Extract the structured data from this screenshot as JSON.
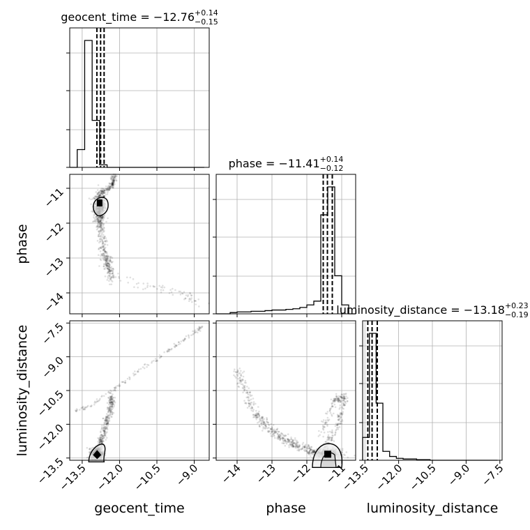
{
  "chart_data": {
    "type": "corner",
    "parameters": [
      "geocent_time",
      "phase",
      "luminosity_distance"
    ],
    "diagonal_titles": [
      {
        "param": "geocent_time",
        "name": "geocent_time = ",
        "median": "−12.76",
        "plus": "+0.14",
        "minus": "−0.15"
      },
      {
        "param": "phase",
        "name": "phase = ",
        "median": "−11.41",
        "plus": "+0.14",
        "minus": "−0.12"
      },
      {
        "param": "luminosity_distance",
        "name": "luminosity_distance = ",
        "median": "−13.18",
        "plus": "+0.23",
        "minus": "−0.19"
      }
    ],
    "axes": {
      "geocent_time": {
        "range": [
          -14.0,
          -8.4
        ],
        "ticks": [
          -13.5,
          -12.0,
          -10.5,
          -9.0
        ],
        "tick_labels": [
          "−13.5",
          "−12.0",
          "−10.5",
          "−9.0"
        ]
      },
      "phase": {
        "range": [
          -14.6,
          -10.6
        ],
        "ticks": [
          -14,
          -13,
          -12,
          -11
        ],
        "tick_labels": [
          "−14",
          "−13",
          "−12",
          "−11"
        ]
      },
      "luminosity_distance": {
        "range": [
          -13.6,
          -7.4
        ],
        "ticks": [
          -13.5,
          -12.0,
          -10.5,
          -9.0,
          -7.5
        ],
        "tick_labels": [
          "−13.5",
          "−12.0",
          "−10.5",
          "−9.0",
          "−7.5"
        ]
      }
    },
    "xlabels": [
      "geocent_time",
      "phase",
      "luminosity_distance"
    ],
    "ylabels": [
      "",
      "phase",
      "luminosity_distance"
    ],
    "histograms": {
      "geocent_time": {
        "bin_edges": [
          -14.0,
          -13.7,
          -13.4,
          -13.1,
          -12.8,
          -12.5,
          -12.2,
          -11.9,
          -11.6,
          -11.3,
          -11.0,
          -10.7,
          -10.4,
          -10.1,
          -9.8,
          -9.5,
          -9.2,
          -8.9,
          -8.6
        ],
        "counts": [
          0,
          0.14,
          1.0,
          0.37,
          0.02,
          0,
          0,
          0,
          0,
          0,
          0,
          0,
          0,
          0,
          0,
          0,
          0,
          0
        ],
        "quantiles": [
          -12.91,
          -12.76,
          -12.62
        ]
      },
      "phase": {
        "bin_edges": [
          -14.6,
          -14.4,
          -14.2,
          -14.0,
          -13.8,
          -13.6,
          -13.4,
          -13.2,
          -13.0,
          -12.8,
          -12.6,
          -12.4,
          -12.2,
          -12.0,
          -11.8,
          -11.6,
          -11.4,
          -11.2,
          -11.0,
          -10.8,
          -10.6
        ],
        "counts": [
          0,
          0,
          0.01,
          0.015,
          0.015,
          0.02,
          0.02,
          0.025,
          0.03,
          0.03,
          0.035,
          0.04,
          0.05,
          0.07,
          0.1,
          0.78,
          1.0,
          0.3,
          0.07,
          0.0
        ],
        "quantiles": [
          -11.53,
          -11.41,
          -11.27
        ]
      },
      "luminosity_distance": {
        "bin_edges": [
          -13.6,
          -13.3,
          -13.0,
          -12.7,
          -12.4,
          -12.1,
          -11.8,
          -11.5,
          -11.2,
          -10.9,
          -10.6,
          -10.3,
          -10.0,
          -9.7,
          -9.4,
          -9.1,
          -8.8,
          -8.5,
          -8.2,
          -7.9,
          -7.6
        ],
        "counts": [
          0.18,
          1.0,
          0.45,
          0.07,
          0.03,
          0.015,
          0.01,
          0.01,
          0.005,
          0.005,
          0,
          0,
          0,
          0,
          0,
          0,
          0,
          0,
          0,
          0
        ],
        "quantiles": [
          -13.37,
          -13.18,
          -12.95
        ]
      }
    },
    "scatter_shape": {
      "phase_vs_geocent_time": {
        "cluster_center": [
          -12.8,
          -11.5
        ],
        "tail": [
          [
            -12.8,
            -12.0
          ],
          [
            -12.6,
            -13.0
          ],
          [
            -12.3,
            -13.5
          ],
          [
            -11.0,
            -13.8
          ],
          [
            -9.5,
            -14.0
          ],
          [
            -8.6,
            -14.4
          ]
        ],
        "arm": [
          [
            -12.8,
            -11.2
          ],
          [
            -12.3,
            -10.9
          ],
          [
            -12.2,
            -10.6
          ]
        ]
      },
      "luminosity_distance_vs_geocent_time": {
        "cluster_center": [
          -12.9,
          -13.3
        ],
        "line_from": [
          -13.2,
          -11.2
        ],
        "line_to": [
          -8.6,
          -7.6
        ],
        "arm": [
          [
            -12.7,
            -12.6
          ],
          [
            -12.4,
            -11.5
          ],
          [
            -12.3,
            -10.8
          ]
        ]
      },
      "luminosity_distance_vs_phase": {
        "cluster_center": [
          -11.4,
          -13.3
        ],
        "curve": [
          [
            -14.0,
            -9.6
          ],
          [
            -13.5,
            -11.5
          ],
          [
            -13.0,
            -12.3
          ],
          [
            -12.5,
            -12.8
          ],
          [
            -12.0,
            -13.1
          ],
          [
            -11.6,
            -13.3
          ]
        ],
        "loop": [
          [
            -11.5,
            -13.1
          ],
          [
            -11.1,
            -12.0
          ],
          [
            -10.9,
            -10.8
          ],
          [
            -11.2,
            -10.9
          ],
          [
            -11.6,
            -12.5
          ]
        ]
      }
    }
  }
}
